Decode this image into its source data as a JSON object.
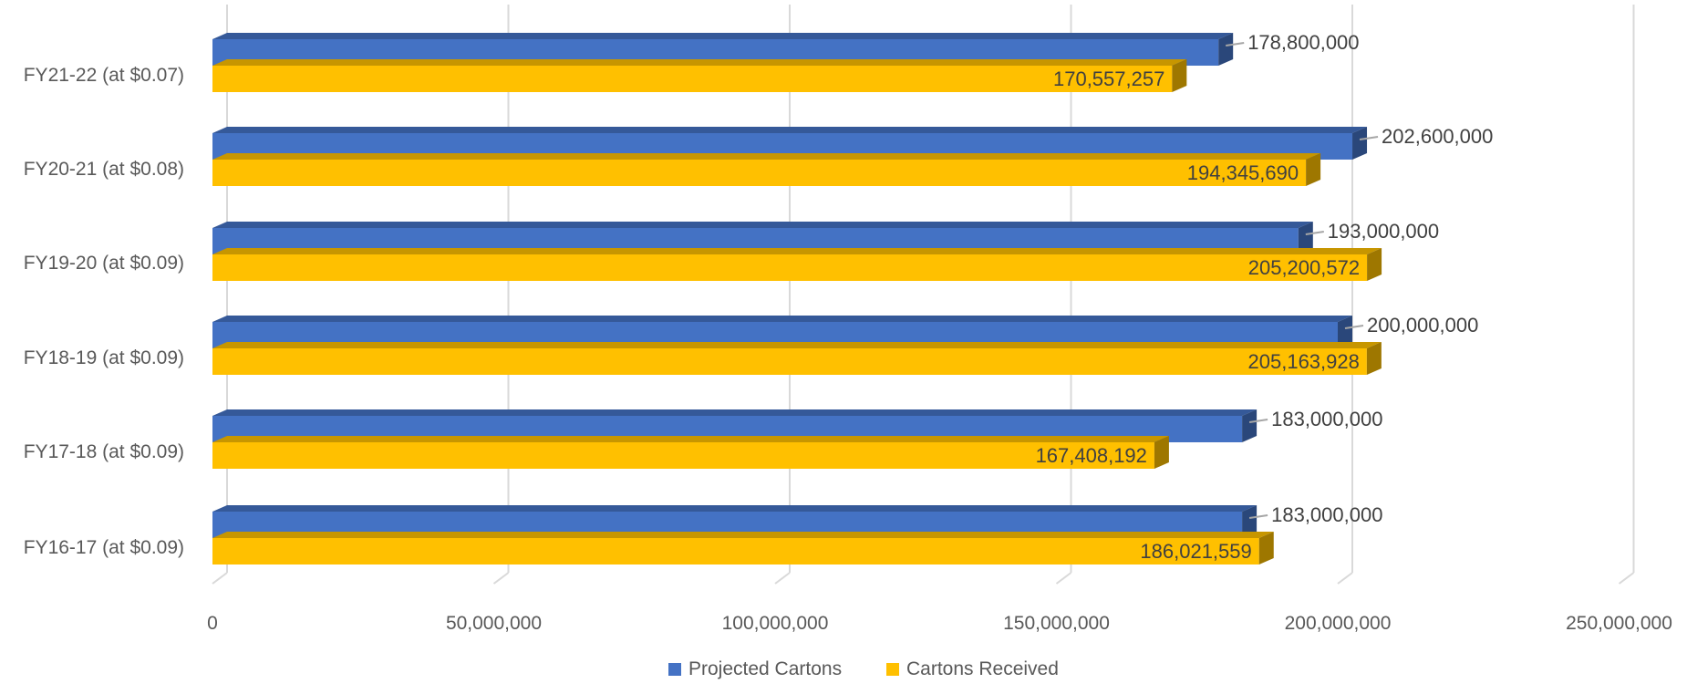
{
  "chart_data": {
    "type": "bar",
    "orientation": "horizontal",
    "style": "3d-clustered-bar",
    "categories": [
      "FY21-22 (at $0.07)",
      "FY20-21 (at $0.08)",
      "FY19-20 (at $0.09)",
      "FY18-19 (at $0.09)",
      "FY17-18 (at $0.09)",
      "FY16-17 (at $0.09)"
    ],
    "series": [
      {
        "name": "Projected Cartons",
        "color": "#4472C4",
        "values": [
          178800000,
          202600000,
          193000000,
          200000000,
          183000000,
          183000000
        ],
        "labels": [
          "178,800,000",
          "202,600,000",
          "193,000,000",
          "200,000,000",
          "183,000,000",
          "183,000,000"
        ]
      },
      {
        "name": "Cartons Received",
        "color": "#FFC000",
        "values": [
          170557257,
          194345690,
          205200572,
          205163928,
          167408192,
          186021559
        ],
        "labels": [
          "170,557,257",
          "194,345,690",
          "205,200,572",
          "205,163,928",
          "167,408,192",
          "186,021,559"
        ]
      }
    ],
    "x_ticks": [
      "0",
      "50,000,000",
      "100,000,000",
      "150,000,000",
      "200,000,000",
      "250,000,000"
    ],
    "xlim": [
      0,
      250000000
    ],
    "grid": true,
    "legend_position": "bottom"
  }
}
